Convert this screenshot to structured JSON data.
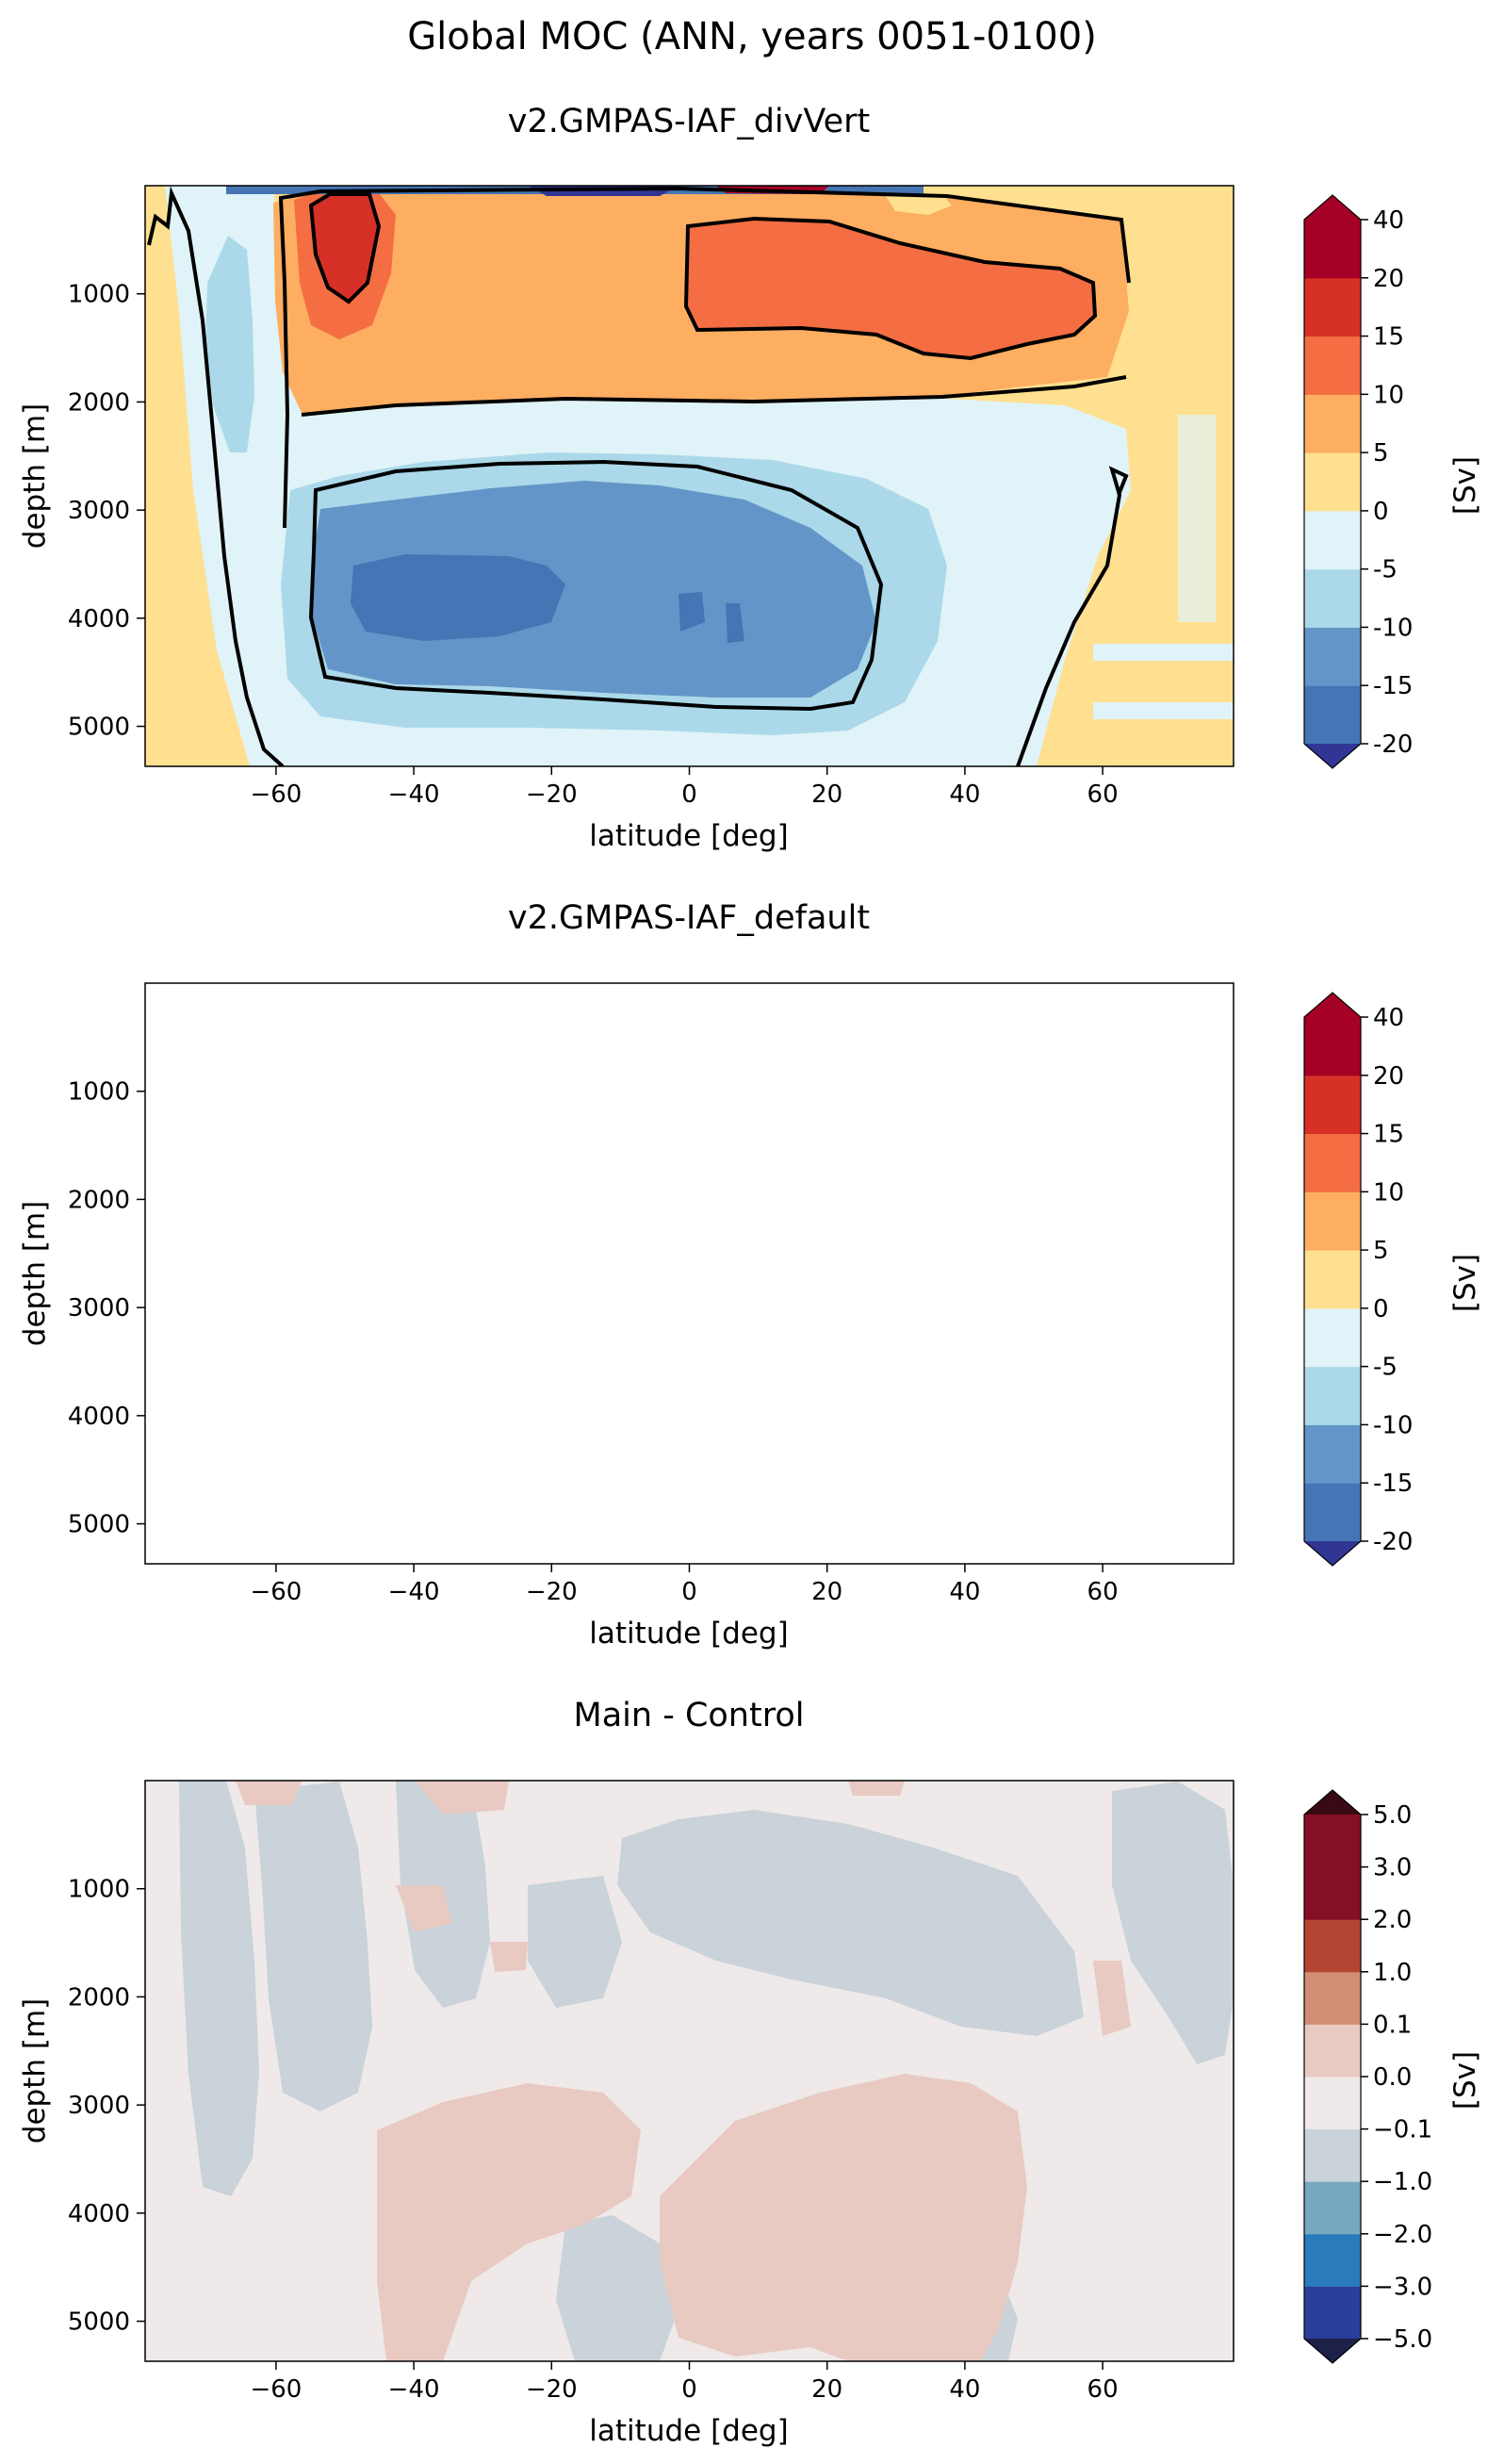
{
  "figure": {
    "title": "Global MOC (ANN, years 0051-0100)"
  },
  "chart_data": [
    {
      "type": "heatmap",
      "title": "v2.GMPAS-IAF_divVert",
      "xlabel": "latitude [deg]",
      "ylabel": "depth [m]",
      "xlim": [
        -79,
        79
      ],
      "ylim": [
        5370,
        0
      ],
      "xticks": [
        -60,
        -40,
        -20,
        0,
        20,
        40,
        60
      ],
      "xtick_labels": [
        "−60",
        "−40",
        "−20",
        "0",
        "20",
        "40",
        "60"
      ],
      "yticks": [
        1000,
        2000,
        3000,
        4000,
        5000
      ],
      "ytick_labels": [
        "1000",
        "2000",
        "3000",
        "4000",
        "5000"
      ],
      "colorbar": {
        "label": "[Sv]",
        "levels": [
          "-20",
          "-15",
          "-10",
          "-5",
          "0",
          "5",
          "10",
          "15",
          "20",
          "40"
        ],
        "colors": [
          "#4575b4",
          "#6395c8",
          "#abd9e9",
          "#e0f3f8",
          "#fee090",
          "#fdae61",
          "#f46d43",
          "#d73027",
          "#a50026"
        ],
        "extend_colors": [
          "#313695",
          "#a50026"
        ]
      }
    },
    {
      "type": "heatmap",
      "title": "v2.GMPAS-IAF_default",
      "xlabel": "latitude [deg]",
      "ylabel": "depth [m]",
      "xlim": [
        -79,
        79
      ],
      "ylim": [
        5370,
        0
      ],
      "xticks": [
        -60,
        -40,
        -20,
        0,
        20,
        40,
        60
      ],
      "xtick_labels": [
        "−60",
        "−40",
        "−20",
        "0",
        "20",
        "40",
        "60"
      ],
      "yticks": [
        1000,
        2000,
        3000,
        4000,
        5000
      ],
      "ytick_labels": [
        "1000",
        "2000",
        "3000",
        "4000",
        "5000"
      ],
      "colorbar": {
        "label": "[Sv]",
        "levels": [
          "-20",
          "-15",
          "-10",
          "-5",
          "0",
          "5",
          "10",
          "15",
          "20",
          "40"
        ],
        "colors": [
          "#4575b4",
          "#6395c8",
          "#abd9e9",
          "#e0f3f8",
          "#fee090",
          "#fdae61",
          "#f46d43",
          "#d73027",
          "#a50026"
        ],
        "extend_colors": [
          "#313695",
          "#a50026"
        ]
      }
    },
    {
      "type": "heatmap",
      "title": "Main - Control",
      "xlabel": "latitude [deg]",
      "ylabel": "depth [m]",
      "xlim": [
        -79,
        79
      ],
      "ylim": [
        5370,
        0
      ],
      "xticks": [
        -60,
        -40,
        -20,
        0,
        20,
        40,
        60
      ],
      "xtick_labels": [
        "−60",
        "−40",
        "−20",
        "0",
        "20",
        "40",
        "60"
      ],
      "yticks": [
        1000,
        2000,
        3000,
        4000,
        5000
      ],
      "ytick_labels": [
        "1000",
        "2000",
        "3000",
        "4000",
        "5000"
      ],
      "colorbar": {
        "label": "[Sv]",
        "levels": [
          "−5.0",
          "−3.0",
          "−2.0",
          "−1.0",
          "−0.1",
          "0.0",
          "0.1",
          "1.0",
          "2.0",
          "3.0",
          "5.0"
        ],
        "colors": [
          "#2a3f99",
          "#2a7bbc",
          "#77a8bf",
          "#c9d3d9",
          "#efe9e9",
          "#e8cac2",
          "#d18e75",
          "#b54533",
          "#850f26",
          "#850f26"
        ],
        "extend_colors": [
          "#1d2048",
          "#3a0a14"
        ]
      }
    }
  ]
}
